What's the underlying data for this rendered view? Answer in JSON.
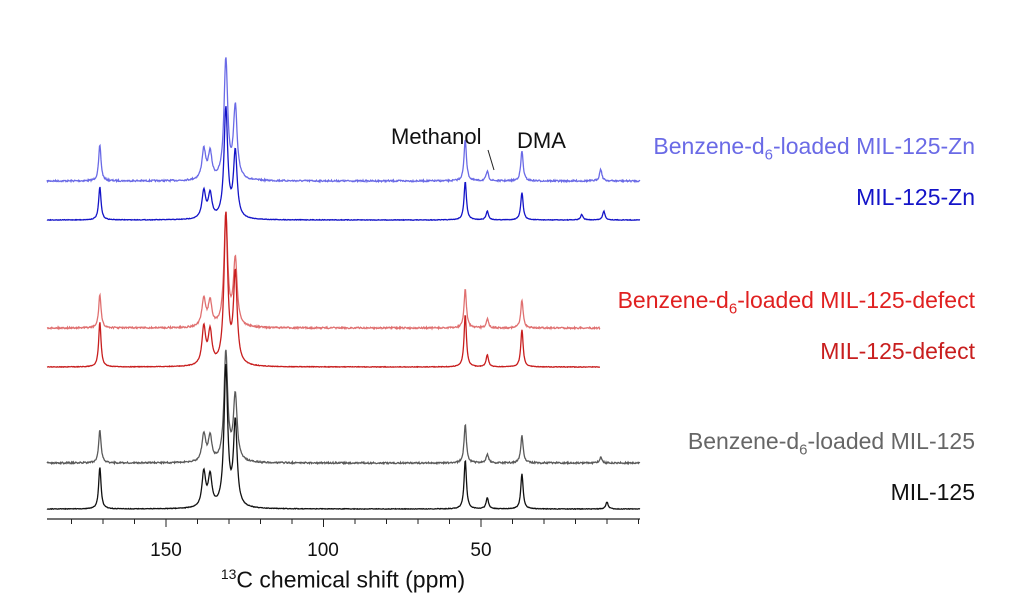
{
  "chart_data": {
    "type": "line",
    "xlabel_superscript": "13",
    "xlabel": "C chemical shift (ppm)",
    "xlim": [
      190,
      0
    ],
    "major_ticks": [
      150,
      100,
      50
    ],
    "minor_tick_step": 10,
    "annotations": {
      "methanol": "Methanol",
      "dma": "DMA"
    },
    "series": [
      {
        "name_parts": [
          "Benzene-d",
          "6",
          "-loaded MIL-125-Zn"
        ],
        "color": "#6a6ae6",
        "peaks_ppm": [
          171,
          138,
          136,
          131,
          128,
          55,
          48,
          37,
          12
        ],
        "peak_heights": [
          0.3,
          0.25,
          0.22,
          1.0,
          0.6,
          0.35,
          0.08,
          0.25,
          0.1
        ]
      },
      {
        "name_parts": [
          "MIL-125-Zn"
        ],
        "color": "#1414c8",
        "peaks_ppm": [
          171,
          138,
          136,
          131,
          128,
          55,
          48,
          37,
          18,
          11
        ],
        "peak_heights": [
          0.3,
          0.25,
          0.22,
          1.0,
          0.6,
          0.35,
          0.08,
          0.25,
          0.05,
          0.08
        ]
      },
      {
        "name_parts": [
          "Benzene-d",
          "6",
          "-loaded MIL-125-defect"
        ],
        "color": "#e07070",
        "peaks_ppm": [
          171,
          138,
          136,
          131,
          128,
          55,
          48,
          37
        ],
        "peak_heights": [
          0.3,
          0.25,
          0.22,
          1.0,
          0.6,
          0.35,
          0.08,
          0.25
        ]
      },
      {
        "name_parts": [
          "MIL-125-defect"
        ],
        "color": "#c81e1e",
        "peaks_ppm": [
          171,
          138,
          136,
          131,
          128,
          55,
          48,
          37
        ],
        "peak_heights": [
          0.3,
          0.25,
          0.22,
          1.0,
          0.6,
          0.35,
          0.08,
          0.25
        ]
      },
      {
        "name_parts": [
          "Benzene-d",
          "6",
          "-loaded MIL-125"
        ],
        "color": "#5a5a5a",
        "peaks_ppm": [
          171,
          138,
          136,
          131,
          128,
          55,
          48,
          37,
          12
        ],
        "peak_heights": [
          0.3,
          0.25,
          0.22,
          1.0,
          0.6,
          0.35,
          0.08,
          0.25,
          0.05
        ]
      },
      {
        "name_parts": [
          "MIL-125"
        ],
        "color": "#111111",
        "peaks_ppm": [
          171,
          138,
          136,
          131,
          128,
          55,
          48,
          37,
          10
        ],
        "peak_heights": [
          0.3,
          0.25,
          0.22,
          1.0,
          0.6,
          0.35,
          0.08,
          0.25,
          0.05
        ]
      }
    ]
  }
}
